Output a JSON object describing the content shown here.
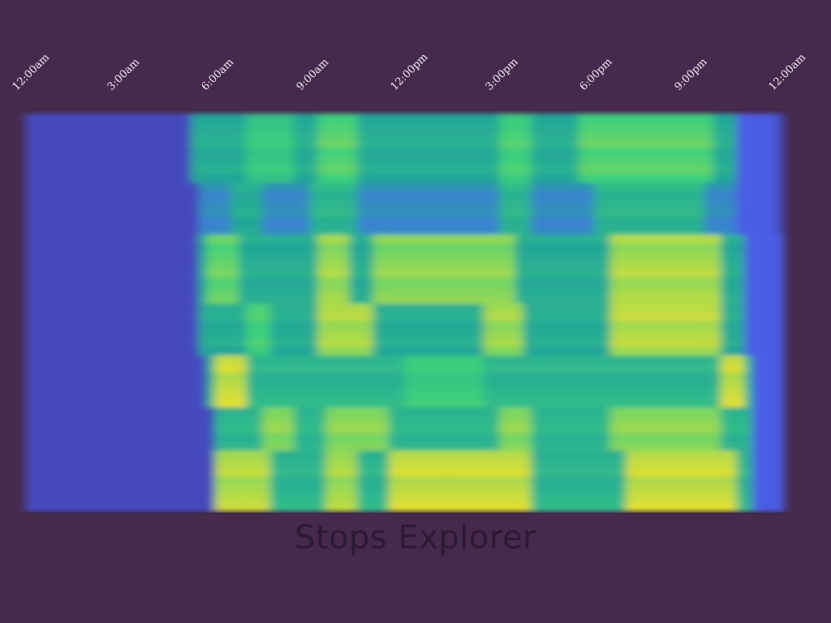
{
  "page": {
    "title": "Stops Explorer"
  },
  "chart_data": {
    "type": "heatmap",
    "title": "Stops Explorer",
    "xlabel": "",
    "ylabel": "",
    "x_ticks": [
      "12:00am",
      "3:00am",
      "6:00am",
      "9:00am",
      "12:00pm",
      "3:00pm",
      "6:00pm",
      "9:00pm",
      "12:00am"
    ],
    "x_unit": "hour of day",
    "x_range": [
      0,
      24
    ],
    "colormap": "viridis",
    "color_range": [
      "#3b2e7e",
      "#4f66ff",
      "#22a39a",
      "#3fd07c",
      "#e9e02f"
    ],
    "grid": false,
    "legend": "none",
    "row_groups": [
      {
        "name": "",
        "rows": 8,
        "start": 5.2,
        "end": 22.5,
        "level": 0.55,
        "peaks": [
          [
            7.0,
            8.5,
            0.7
          ],
          [
            9.2,
            10.5,
            0.78
          ],
          [
            15.0,
            16.0,
            0.75
          ],
          [
            17.5,
            21.8,
            0.78
          ]
        ]
      },
      {
        "name": "",
        "rows": 6,
        "start": 5.5,
        "end": 22.5,
        "level": 0.4,
        "peaks": [
          [
            6.5,
            7.5,
            0.55
          ],
          [
            9.0,
            10.5,
            0.6
          ],
          [
            15.0,
            16.0,
            0.6
          ],
          [
            18.0,
            21.5,
            0.6
          ]
        ]
      },
      {
        "name": "",
        "rows": 8,
        "start": 5.5,
        "end": 22.8,
        "level": 0.55,
        "peaks": [
          [
            5.8,
            6.8,
            0.8
          ],
          [
            9.3,
            10.2,
            0.88
          ],
          [
            11.0,
            15.5,
            0.85
          ],
          [
            18.5,
            22.0,
            0.9
          ]
        ]
      },
      {
        "name": "",
        "rows": 6,
        "start": 5.6,
        "end": 22.8,
        "level": 0.55,
        "peaks": [
          [
            7.0,
            7.8,
            0.75
          ],
          [
            9.3,
            11.0,
            0.9
          ],
          [
            14.5,
            15.8,
            0.88
          ],
          [
            18.5,
            22.0,
            0.92
          ]
        ]
      },
      {
        "name": "",
        "rows": 6,
        "start": 5.8,
        "end": 23.0,
        "level": 0.6,
        "peaks": [
          [
            6.0,
            7.0,
            0.95
          ],
          [
            12.0,
            14.5,
            0.72
          ],
          [
            22.0,
            22.8,
            0.95
          ]
        ]
      },
      {
        "name": "",
        "rows": 5,
        "start": 6.0,
        "end": 23.0,
        "level": 0.6,
        "peaks": [
          [
            7.5,
            8.5,
            0.85
          ],
          [
            9.5,
            11.5,
            0.85
          ],
          [
            15.0,
            16.0,
            0.85
          ],
          [
            18.5,
            22.0,
            0.85
          ]
        ]
      },
      {
        "name": "",
        "rows": 7,
        "start": 6.0,
        "end": 23.0,
        "level": 0.6,
        "peaks": [
          [
            6.0,
            7.8,
            0.92
          ],
          [
            9.5,
            10.5,
            0.9
          ],
          [
            11.5,
            16.0,
            0.95
          ],
          [
            19.0,
            22.5,
            0.95
          ]
        ]
      }
    ]
  }
}
